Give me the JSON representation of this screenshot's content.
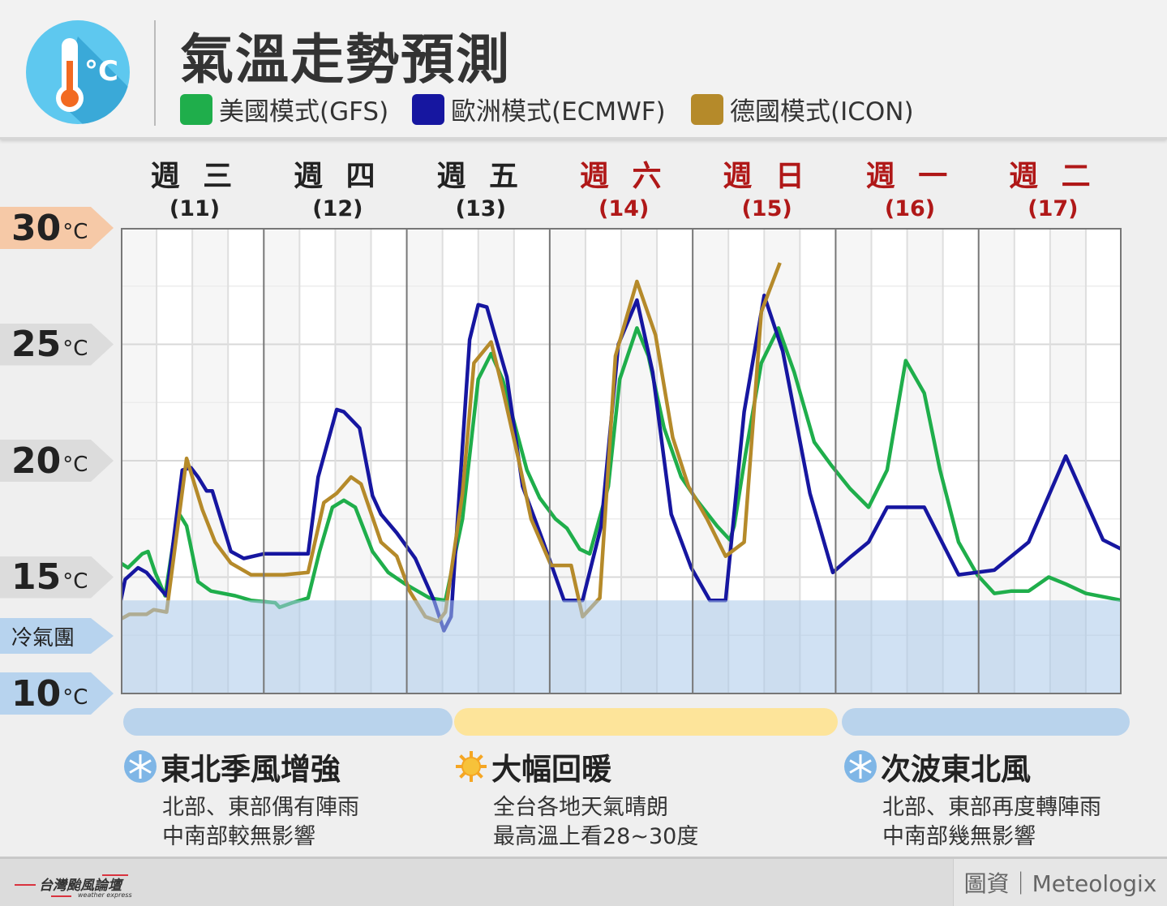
{
  "header": {
    "title": "氣溫走勢預測",
    "icon": "thermometer-celsius-icon"
  },
  "legend": [
    {
      "label": "美國模式(GFS)",
      "color": "#1fae4b"
    },
    {
      "label": "歐洲模式(ECMWF)",
      "color": "#1616a0"
    },
    {
      "label": "德國模式(ICON)",
      "color": "#b58a2a"
    }
  ],
  "days": [
    {
      "name": "週 三",
      "date": "(11)",
      "color": "#222222"
    },
    {
      "name": "週 四",
      "date": "(12)",
      "color": "#222222"
    },
    {
      "name": "週 五",
      "date": "(13)",
      "color": "#222222"
    },
    {
      "name": "週 六",
      "date": "(14)",
      "color": "#b01818"
    },
    {
      "name": "週 日",
      "date": "(15)",
      "color": "#b01818"
    },
    {
      "name": "週 一",
      "date": "(16)",
      "color": "#b01818"
    },
    {
      "name": "週 二",
      "date": "(17)",
      "color": "#b01818"
    }
  ],
  "y_labels": [
    {
      "value": "30",
      "unit": "°C",
      "color": "#f6c9a7"
    },
    {
      "value": "25",
      "unit": "°C",
      "color": "#dcdcdc"
    },
    {
      "value": "20",
      "unit": "°C",
      "color": "#dcdcdc"
    },
    {
      "value": "15",
      "unit": "°C",
      "color": "#dcdcdc"
    },
    {
      "value": "10",
      "unit": "°C",
      "color": "#b7d3ee"
    }
  ],
  "cold_label": "冷氣團",
  "chart_data": {
    "type": "line",
    "xlim": [
      11,
      18
    ],
    "ylim": [
      10,
      30
    ],
    "x_unit": "day of month",
    "cold_air_threshold": 14,
    "cold_band_color": "#a9c8ea",
    "grid": true,
    "legend_placement": "top",
    "series": [
      {
        "name": "美國模式(GFS)",
        "color": "#1fae4b",
        "points": [
          [
            11.0,
            15.6
          ],
          [
            11.05,
            15.4
          ],
          [
            11.15,
            16.0
          ],
          [
            11.19,
            16.1
          ],
          [
            11.24,
            15.2
          ],
          [
            11.31,
            14.2
          ],
          [
            11.4,
            17.8
          ],
          [
            11.46,
            17.2
          ],
          [
            11.54,
            14.8
          ],
          [
            11.63,
            14.4
          ],
          [
            11.8,
            14.2
          ],
          [
            11.91,
            14.0
          ],
          [
            12.08,
            13.9
          ],
          [
            12.11,
            13.7
          ],
          [
            12.2,
            13.9
          ],
          [
            12.31,
            14.1
          ],
          [
            12.39,
            16.1
          ],
          [
            12.48,
            18.0
          ],
          [
            12.56,
            18.3
          ],
          [
            12.64,
            18.0
          ],
          [
            12.76,
            16.1
          ],
          [
            12.87,
            15.2
          ],
          [
            12.99,
            14.7
          ],
          [
            13.16,
            14.1
          ],
          [
            13.27,
            14.0
          ],
          [
            13.39,
            17.5
          ],
          [
            13.5,
            23.5
          ],
          [
            13.59,
            24.6
          ],
          [
            13.67,
            23.5
          ],
          [
            13.84,
            19.6
          ],
          [
            13.93,
            18.4
          ],
          [
            14.04,
            17.5
          ],
          [
            14.12,
            17.1
          ],
          [
            14.21,
            16.2
          ],
          [
            14.28,
            16.0
          ],
          [
            14.41,
            18.9
          ],
          [
            14.49,
            23.5
          ],
          [
            14.61,
            25.7
          ],
          [
            14.69,
            24.5
          ],
          [
            14.8,
            21.4
          ],
          [
            14.92,
            19.3
          ],
          [
            15.03,
            18.3
          ],
          [
            15.17,
            17.2
          ],
          [
            15.26,
            16.6
          ],
          [
            15.29,
            17.2
          ],
          [
            15.37,
            20.3
          ],
          [
            15.48,
            24.2
          ],
          [
            15.6,
            25.7
          ],
          [
            15.71,
            23.8
          ],
          [
            15.85,
            20.8
          ],
          [
            15.97,
            19.8
          ],
          [
            16.1,
            18.8
          ],
          [
            16.23,
            18.0
          ],
          [
            16.36,
            19.6
          ],
          [
            16.49,
            24.3
          ],
          [
            16.62,
            22.9
          ],
          [
            16.73,
            19.6
          ],
          [
            16.86,
            16.5
          ],
          [
            16.99,
            15.1
          ],
          [
            17.11,
            14.3
          ],
          [
            17.23,
            14.4
          ],
          [
            17.35,
            14.4
          ],
          [
            17.49,
            15.0
          ],
          [
            17.61,
            14.7
          ],
          [
            17.75,
            14.3
          ],
          [
            18.0,
            14.0
          ]
        ]
      },
      {
        "name": "歐洲模式(ECMWF)",
        "color": "#1616a0",
        "points": [
          [
            11.0,
            14.0
          ],
          [
            11.03,
            14.9
          ],
          [
            11.12,
            15.4
          ],
          [
            11.18,
            15.2
          ],
          [
            11.29,
            14.4
          ],
          [
            11.32,
            14.2
          ],
          [
            11.43,
            19.6
          ],
          [
            11.49,
            19.7
          ],
          [
            11.54,
            19.3
          ],
          [
            11.6,
            18.7
          ],
          [
            11.64,
            18.7
          ],
          [
            11.77,
            16.1
          ],
          [
            11.86,
            15.8
          ],
          [
            12.0,
            16.0
          ],
          [
            12.2,
            16.0
          ],
          [
            12.31,
            16.0
          ],
          [
            12.38,
            19.3
          ],
          [
            12.51,
            22.2
          ],
          [
            12.56,
            22.1
          ],
          [
            12.67,
            21.4
          ],
          [
            12.76,
            18.5
          ],
          [
            12.82,
            17.7
          ],
          [
            12.93,
            16.9
          ],
          [
            13.06,
            15.8
          ],
          [
            13.19,
            14.0
          ],
          [
            13.26,
            12.7
          ],
          [
            13.31,
            13.3
          ],
          [
            13.44,
            25.2
          ],
          [
            13.5,
            26.7
          ],
          [
            13.56,
            26.6
          ],
          [
            13.7,
            23.6
          ],
          [
            13.81,
            18.9
          ],
          [
            13.95,
            16.6
          ],
          [
            14.1,
            14.0
          ],
          [
            14.23,
            14.0
          ],
          [
            14.36,
            17.2
          ],
          [
            14.48,
            25.0
          ],
          [
            14.61,
            26.9
          ],
          [
            14.72,
            23.8
          ],
          [
            14.85,
            17.7
          ],
          [
            14.99,
            15.4
          ],
          [
            15.12,
            14.0
          ],
          [
            15.23,
            14.0
          ],
          [
            15.36,
            22.1
          ],
          [
            15.5,
            27.1
          ],
          [
            15.63,
            24.7
          ],
          [
            15.82,
            18.6
          ],
          [
            15.98,
            15.2
          ],
          [
            16.11,
            15.9
          ],
          [
            16.23,
            16.5
          ],
          [
            16.36,
            18.0
          ],
          [
            16.62,
            18.0
          ],
          [
            16.86,
            15.1
          ],
          [
            17.11,
            15.3
          ],
          [
            17.35,
            16.5
          ],
          [
            17.61,
            20.2
          ],
          [
            17.87,
            16.6
          ],
          [
            18.0,
            16.2
          ]
        ]
      },
      {
        "name": "德國模式(ICON)",
        "color": "#b58a2a",
        "points": [
          [
            11.0,
            13.2
          ],
          [
            11.06,
            13.4
          ],
          [
            11.18,
            13.4
          ],
          [
            11.23,
            13.6
          ],
          [
            11.32,
            13.5
          ],
          [
            11.46,
            20.1
          ],
          [
            11.57,
            17.9
          ],
          [
            11.66,
            16.5
          ],
          [
            11.77,
            15.6
          ],
          [
            11.91,
            15.1
          ],
          [
            12.14,
            15.1
          ],
          [
            12.31,
            15.2
          ],
          [
            12.42,
            18.2
          ],
          [
            12.51,
            18.6
          ],
          [
            12.61,
            19.3
          ],
          [
            12.68,
            19.0
          ],
          [
            12.82,
            16.5
          ],
          [
            12.93,
            15.9
          ],
          [
            13.02,
            14.4
          ],
          [
            13.13,
            13.3
          ],
          [
            13.22,
            13.1
          ],
          [
            13.27,
            13.5
          ],
          [
            13.39,
            18.6
          ],
          [
            13.47,
            24.2
          ],
          [
            13.59,
            25.1
          ],
          [
            13.67,
            23.1
          ],
          [
            13.78,
            20.1
          ],
          [
            13.87,
            17.5
          ],
          [
            14.01,
            15.5
          ],
          [
            14.15,
            15.5
          ],
          [
            14.23,
            13.3
          ],
          [
            14.35,
            14.1
          ],
          [
            14.46,
            24.5
          ],
          [
            14.61,
            27.7
          ],
          [
            14.74,
            25.4
          ],
          [
            14.86,
            21.0
          ],
          [
            14.97,
            18.9
          ],
          [
            15.1,
            17.5
          ],
          [
            15.23,
            15.9
          ],
          [
            15.36,
            16.5
          ],
          [
            15.48,
            26.4
          ],
          [
            15.61,
            28.5
          ]
        ]
      }
    ]
  },
  "periods": [
    {
      "color": "#b9d3ec",
      "icon": "snowflake-icon",
      "title": "東北季風增強",
      "lines": [
        "北部、東部偶有陣雨",
        "中南部較無影響"
      ]
    },
    {
      "color": "#fde49a",
      "icon": "sun-icon",
      "title": "大幅回暖",
      "lines": [
        "全台各地天氣晴朗",
        "最高溫上看28~30度"
      ]
    },
    {
      "color": "#b9d3ec",
      "icon": "snowflake-icon",
      "title": "次波東北風",
      "lines": [
        "北部、東部再度轉陣雨",
        "中南部幾無影響"
      ]
    }
  ],
  "footer": {
    "logo_text": "台灣颱風論壇",
    "logo_sub": "weather express",
    "credit": "圖資｜Meteologix"
  }
}
